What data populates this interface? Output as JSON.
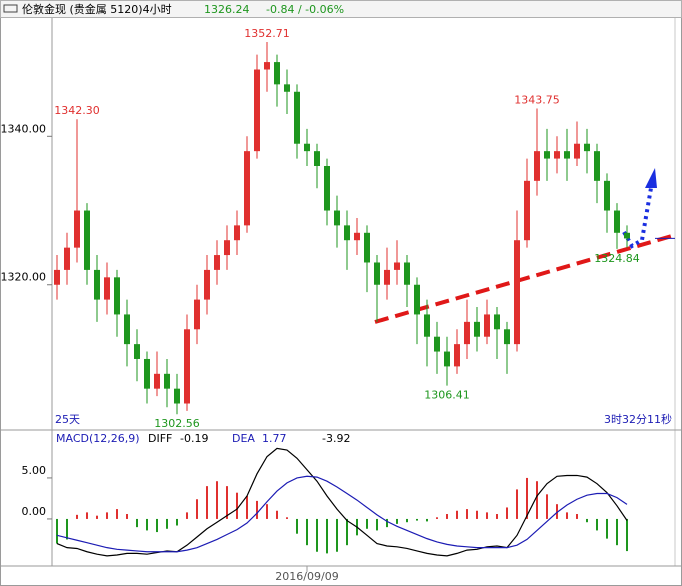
{
  "header": {
    "title": "伦敦金现 (贵金属 5120)4小时",
    "change": "-0.84 / -0.06%"
  },
  "chart_data": [
    {
      "type": "candlestick",
      "up_color": "#e0302f",
      "down_color": "#1e961e",
      "categories": [
        null,
        null,
        null,
        null,
        null,
        null,
        null,
        null,
        null,
        null,
        null,
        null,
        null,
        null,
        null,
        null,
        null,
        null,
        null,
        null,
        null,
        null,
        null,
        null,
        null,
        "2016/09/09",
        null,
        null,
        null,
        null,
        null,
        null,
        null,
        null,
        null,
        null,
        null,
        null,
        null,
        null,
        null,
        null,
        null,
        null,
        null,
        null,
        null,
        null,
        null,
        null,
        null,
        null,
        null,
        null,
        null,
        null,
        null,
        null
      ],
      "open": [
        1320,
        1322,
        1325,
        1330,
        1322,
        1318,
        1321,
        1316,
        1312,
        1310,
        1306,
        1308,
        1306,
        1304,
        1314,
        1318,
        1322,
        1324,
        1326,
        1328,
        1338,
        1349,
        1350,
        1347,
        1346,
        1339,
        1338,
        1336,
        1330,
        1328,
        1326,
        1327,
        1323,
        1320,
        1322,
        1323,
        1320,
        1316,
        1313,
        1311,
        1309,
        1312,
        1315,
        1313,
        1316,
        1314,
        1312,
        1326,
        1334,
        1338,
        1337,
        1338,
        1337,
        1339,
        1338,
        1334,
        1330,
        1327
      ],
      "high": [
        1324,
        1327,
        1342.3,
        1331,
        1324,
        1323,
        1322,
        1318,
        1314,
        1311,
        1311,
        1310,
        1308,
        1316,
        1320,
        1324,
        1326,
        1328,
        1330,
        1340,
        1351,
        1352.71,
        1351,
        1349,
        1347,
        1341,
        1339,
        1337,
        1332,
        1330,
        1329,
        1328,
        1324,
        1325,
        1326,
        1324,
        1321,
        1318,
        1315,
        1313,
        1314,
        1318,
        1317,
        1318,
        1317,
        1315,
        1330,
        1337,
        1343.75,
        1341,
        1340,
        1341,
        1342,
        1341,
        1339,
        1335,
        1331,
        1328
      ],
      "low": [
        1318,
        1320,
        1323,
        1320,
        1315,
        1316,
        1313,
        1309,
        1307,
        1304,
        1305,
        1303.5,
        1302.56,
        1303,
        1312,
        1316,
        1320,
        1322,
        1324,
        1327,
        1337,
        1346,
        1344,
        1343,
        1337,
        1336,
        1333,
        1328,
        1325,
        1322,
        1324,
        1319,
        1315,
        1318,
        1320,
        1317,
        1312,
        1309,
        1308,
        1306.41,
        1308,
        1310,
        1311,
        1312,
        1310,
        1308,
        1311,
        1325,
        1332,
        1334,
        1335,
        1334,
        1336,
        1335,
        1331,
        1327,
        1324.84,
        1325
      ],
      "close": [
        1322,
        1325,
        1330,
        1322,
        1318,
        1321,
        1316,
        1312,
        1310,
        1306,
        1308,
        1306,
        1304,
        1314,
        1318,
        1322,
        1324,
        1326,
        1328,
        1338,
        1349,
        1350,
        1347,
        1346,
        1339,
        1338,
        1336,
        1330,
        1328,
        1326,
        1327,
        1323,
        1320,
        1322,
        1323,
        1320,
        1316,
        1313,
        1311,
        1309,
        1312,
        1315,
        1313,
        1316,
        1314,
        1312,
        1326,
        1334,
        1338,
        1337,
        1338,
        1337,
        1339,
        1338,
        1334,
        1330,
        1327,
        1326.24
      ],
      "high_labels": [
        null,
        null,
        "1342.30",
        null,
        null,
        null,
        null,
        null,
        null,
        null,
        null,
        null,
        null,
        null,
        null,
        null,
        null,
        null,
        null,
        null,
        null,
        "1352.71",
        null,
        null,
        null,
        null,
        null,
        null,
        null,
        null,
        null,
        null,
        null,
        null,
        null,
        null,
        null,
        null,
        null,
        null,
        null,
        null,
        null,
        null,
        null,
        null,
        null,
        null,
        "1343.75",
        null,
        null,
        null,
        null,
        null,
        null,
        null,
        null,
        null
      ],
      "low_labels": [
        null,
        null,
        null,
        null,
        null,
        null,
        null,
        null,
        null,
        null,
        null,
        null,
        "1302.56",
        null,
        null,
        null,
        null,
        null,
        null,
        null,
        null,
        null,
        null,
        null,
        null,
        null,
        null,
        null,
        null,
        null,
        null,
        null,
        null,
        null,
        null,
        null,
        null,
        null,
        null,
        "1306.41",
        null,
        null,
        null,
        null,
        null,
        null,
        null,
        null,
        null,
        null,
        null,
        null,
        null,
        null,
        null,
        null,
        "1324.84",
        null
      ],
      "ylim": [
        1300.7,
        1355.4
      ],
      "yticks": [
        {
          "value": 1320,
          "label": "1320.00"
        },
        {
          "value": 1340,
          "label": "1340.00"
        }
      ],
      "period_label": "25天",
      "countdown": "3时32分11秒"
    },
    {
      "type": "macd",
      "title": "MACD(12,26,9)",
      "series": [
        {
          "name": "DIFF",
          "color": "#000000",
          "values": [
            -3.0,
            -3.5,
            -3.6,
            -4.0,
            -4.3,
            -4.5,
            -4.4,
            -4.2,
            -4.2,
            -4.3,
            -4.1,
            -3.9,
            -4.0,
            -3.2,
            -2.2,
            -1.2,
            -0.4,
            0.4,
            1.2,
            2.8,
            5.5,
            7.6,
            8.6,
            8.4,
            7.4,
            6.0,
            4.6,
            2.8,
            1.2,
            -0.2,
            -1.0,
            -2.0,
            -3.0,
            -3.3,
            -3.4,
            -3.6,
            -3.9,
            -4.2,
            -4.4,
            -4.5,
            -4.2,
            -3.8,
            -3.7,
            -3.4,
            -3.3,
            -3.5,
            -2.0,
            0.4,
            2.8,
            4.3,
            5.2,
            5.3,
            5.3,
            5.1,
            4.3,
            3.2,
            1.6,
            -0.19
          ]
        },
        {
          "name": "DEA",
          "color": "#1c1cb4",
          "values": [
            -2.0,
            -2.3,
            -2.6,
            -2.9,
            -3.2,
            -3.5,
            -3.7,
            -3.8,
            -3.9,
            -4.0,
            -4.0,
            -4.0,
            -4.0,
            -3.8,
            -3.5,
            -3.0,
            -2.5,
            -1.9,
            -1.3,
            -0.5,
            0.7,
            2.1,
            3.4,
            4.4,
            5.0,
            5.2,
            5.1,
            4.6,
            3.9,
            3.1,
            2.3,
            1.4,
            0.5,
            -0.3,
            -0.9,
            -1.4,
            -1.9,
            -2.4,
            -2.8,
            -3.1,
            -3.3,
            -3.4,
            -3.5,
            -3.5,
            -3.5,
            -3.5,
            -3.2,
            -2.5,
            -1.4,
            -0.3,
            0.8,
            1.7,
            2.4,
            2.9,
            3.1,
            3.1,
            2.6,
            1.77
          ]
        }
      ],
      "histogram": [
        -3.0,
        -2.5,
        0.5,
        0.8,
        0.4,
        0.8,
        1.2,
        0.6,
        -1.0,
        -1.4,
        -1.6,
        -1.2,
        -0.8,
        0.8,
        2.4,
        4.0,
        4.6,
        4.0,
        3.2,
        2.8,
        2.2,
        1.8,
        1.0,
        0.2,
        -1.8,
        -3.2,
        -4.0,
        -4.2,
        -4.0,
        -3.2,
        -2.0,
        -1.2,
        -1.4,
        -1.0,
        -0.6,
        -0.4,
        -0.2,
        -0.3,
        0.2,
        0.6,
        1.0,
        1.2,
        1.0,
        0.8,
        0.6,
        1.4,
        3.6,
        5.0,
        4.6,
        3.0,
        1.8,
        0.8,
        0.6,
        -0.4,
        -1.4,
        -2.4,
        -3.2,
        -3.92
      ],
      "ylim": [
        -5.25,
        10.6
      ],
      "yticks": [
        {
          "value": 0,
          "label": "0.00"
        },
        {
          "value": 5,
          "label": "5.00"
        }
      ]
    }
  ]
}
